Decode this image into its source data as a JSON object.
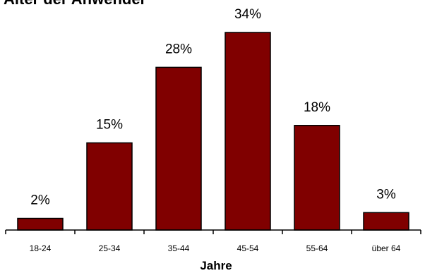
{
  "chart_data": {
    "type": "bar",
    "title": "Alter der Anwender",
    "categories": [
      "18-24",
      "25-34",
      "35-44",
      "45-54",
      "55-64",
      "über 64"
    ],
    "values": [
      2,
      15,
      28,
      34,
      18,
      3
    ],
    "value_labels": [
      "2%",
      "15%",
      "28%",
      "34%",
      "18%",
      "3%"
    ],
    "xlabel": "Jahre",
    "ylabel": "",
    "ylim": [
      0,
      34
    ],
    "grid": false,
    "bar_color": "#800000"
  }
}
